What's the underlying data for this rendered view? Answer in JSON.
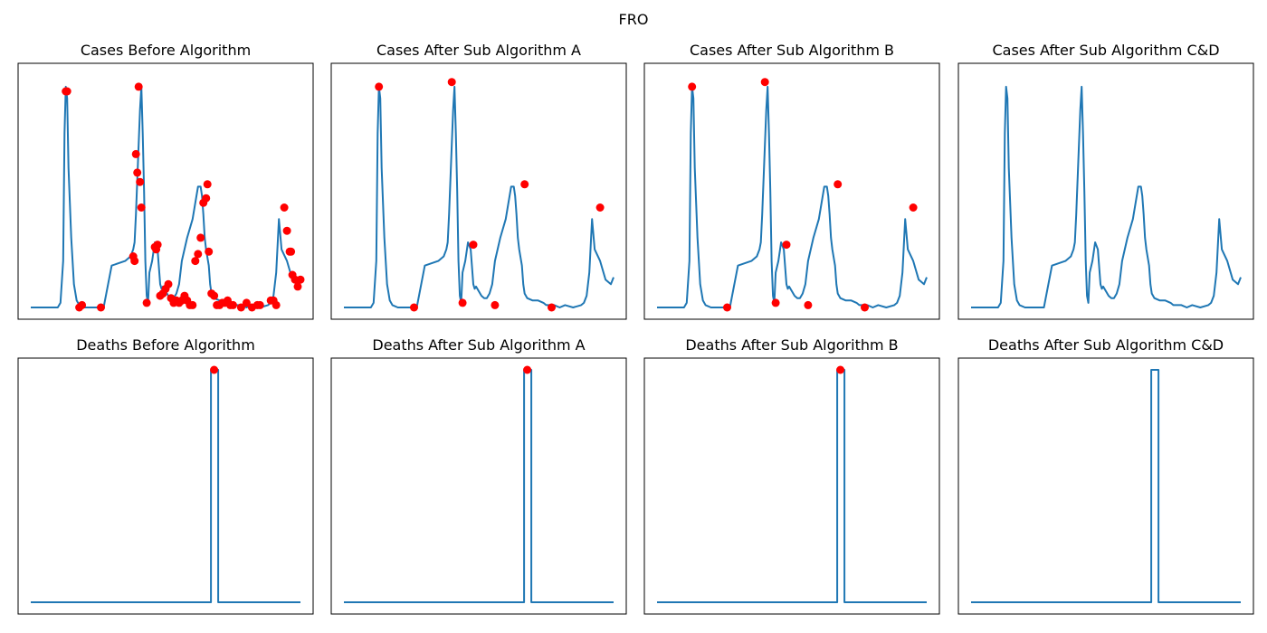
{
  "figure": {
    "suptitle": "FRO",
    "colors": {
      "line": "#1f77b4",
      "marker": "#ff0000"
    }
  },
  "chart_data": [
    {
      "type": "line",
      "row": "cases",
      "title": "Cases Before Algorithm",
      "xlim": [
        0,
        100
      ],
      "ylim": [
        0,
        100
      ],
      "x": [
        0,
        5,
        10,
        11,
        12,
        12.5,
        13,
        13.5,
        14,
        15,
        16,
        17,
        18,
        20,
        25,
        26,
        27,
        30,
        35,
        37,
        38,
        38.5,
        39,
        39.5,
        40,
        40.5,
        41,
        41.5,
        42,
        42.5,
        43,
        43.5,
        44,
        45,
        46,
        47,
        48,
        48.5,
        49,
        50,
        51,
        52,
        53,
        54,
        55,
        56,
        58,
        60,
        61,
        62,
        63,
        63.5,
        64,
        64.5,
        65,
        66,
        66.5,
        67,
        68,
        70,
        72,
        74,
        75,
        78,
        80,
        82,
        85,
        88,
        89,
        90,
        91,
        92,
        93,
        95,
        97,
        99,
        100
      ],
      "y": [
        0,
        0,
        0,
        2,
        20,
        75,
        95,
        90,
        60,
        30,
        10,
        3,
        1,
        0,
        0,
        0,
        0,
        18,
        20,
        22,
        25,
        28,
        40,
        55,
        70,
        85,
        95,
        75,
        50,
        20,
        5,
        2,
        15,
        20,
        28,
        25,
        10,
        8,
        9,
        7,
        5,
        4,
        4,
        6,
        10,
        20,
        30,
        38,
        45,
        52,
        52,
        48,
        40,
        30,
        25,
        18,
        10,
        6,
        4,
        3,
        3,
        2,
        1,
        1,
        0,
        1,
        0,
        1,
        2,
        5,
        15,
        38,
        25,
        20,
        12,
        10,
        13
      ],
      "markers": [
        [
          13,
          93
        ],
        [
          13.5,
          93
        ],
        [
          18,
          0
        ],
        [
          19,
          1
        ],
        [
          26,
          0
        ],
        [
          38,
          22
        ],
        [
          38.5,
          20
        ],
        [
          39,
          66
        ],
        [
          39.5,
          58
        ],
        [
          40,
          95
        ],
        [
          40.5,
          54
        ],
        [
          41,
          43
        ],
        [
          43,
          2
        ],
        [
          46,
          26
        ],
        [
          46.5,
          25
        ],
        [
          47,
          27
        ],
        [
          48,
          5
        ],
        [
          49,
          6
        ],
        [
          50,
          8
        ],
        [
          51,
          10
        ],
        [
          52,
          4
        ],
        [
          53,
          2
        ],
        [
          54,
          3
        ],
        [
          55,
          2
        ],
        [
          56,
          3
        ],
        [
          57,
          5
        ],
        [
          58,
          3
        ],
        [
          59,
          1
        ],
        [
          60,
          1
        ],
        [
          61,
          20
        ],
        [
          62,
          23
        ],
        [
          63,
          30
        ],
        [
          64,
          45
        ],
        [
          65,
          47
        ],
        [
          65.5,
          53
        ],
        [
          66,
          24
        ],
        [
          67,
          6
        ],
        [
          68,
          5
        ],
        [
          69,
          1
        ],
        [
          70,
          1
        ],
        [
          71,
          2
        ],
        [
          72,
          2
        ],
        [
          73,
          3
        ],
        [
          74,
          1
        ],
        [
          75,
          1
        ],
        [
          78,
          0
        ],
        [
          80,
          2
        ],
        [
          82,
          0
        ],
        [
          84,
          1
        ],
        [
          85,
          1
        ],
        [
          89,
          3
        ],
        [
          90,
          3
        ],
        [
          91,
          1
        ],
        [
          94,
          43
        ],
        [
          95,
          33
        ],
        [
          96,
          24
        ],
        [
          96.5,
          24
        ],
        [
          97,
          14
        ],
        [
          98,
          12
        ],
        [
          99,
          9
        ],
        [
          100,
          12
        ]
      ]
    },
    {
      "type": "line",
      "row": "cases",
      "title": "Cases After Sub Algorithm A",
      "xlim": [
        0,
        100
      ],
      "ylim": [
        0,
        100
      ],
      "x": [
        0,
        5,
        10,
        11,
        12,
        12.5,
        13,
        13.5,
        14,
        15,
        16,
        17,
        18,
        20,
        25,
        26,
        27,
        30,
        35,
        37,
        38,
        38.5,
        39,
        39.5,
        40,
        40.5,
        41,
        41.5,
        42,
        42.5,
        43,
        43.5,
        44,
        45,
        46,
        47,
        48,
        48.5,
        49,
        50,
        51,
        52,
        53,
        54,
        55,
        56,
        58,
        60,
        61,
        62,
        63,
        63.5,
        64,
        64.5,
        65,
        66,
        66.5,
        67,
        68,
        70,
        72,
        74,
        75,
        78,
        80,
        82,
        85,
        88,
        89,
        90,
        91,
        92,
        93,
        95,
        97,
        99,
        100
      ],
      "y": [
        0,
        0,
        0,
        2,
        20,
        75,
        95,
        90,
        60,
        30,
        10,
        3,
        1,
        0,
        0,
        0,
        0,
        18,
        20,
        22,
        25,
        28,
        40,
        55,
        70,
        85,
        95,
        75,
        50,
        20,
        5,
        2,
        15,
        20,
        28,
        25,
        10,
        8,
        9,
        7,
        5,
        4,
        4,
        6,
        10,
        20,
        30,
        38,
        45,
        52,
        52,
        48,
        40,
        30,
        25,
        18,
        10,
        6,
        4,
        3,
        3,
        2,
        1,
        1,
        0,
        1,
        0,
        1,
        2,
        5,
        15,
        38,
        25,
        20,
        12,
        10,
        13
      ],
      "markers": [
        [
          13,
          95
        ],
        [
          26,
          0
        ],
        [
          40,
          97
        ],
        [
          44,
          2
        ],
        [
          48,
          27
        ],
        [
          56,
          1
        ],
        [
          67,
          53
        ],
        [
          77,
          0
        ],
        [
          95,
          43
        ]
      ]
    },
    {
      "type": "line",
      "row": "cases",
      "title": "Cases After Sub Algorithm B",
      "xlim": [
        0,
        100
      ],
      "ylim": [
        0,
        100
      ],
      "x": [
        0,
        5,
        10,
        11,
        12,
        12.5,
        13,
        13.5,
        14,
        15,
        16,
        17,
        18,
        20,
        25,
        26,
        27,
        30,
        35,
        37,
        38,
        38.5,
        39,
        39.5,
        40,
        40.5,
        41,
        41.5,
        42,
        42.5,
        43,
        43.5,
        44,
        45,
        46,
        47,
        48,
        48.5,
        49,
        50,
        51,
        52,
        53,
        54,
        55,
        56,
        58,
        60,
        61,
        62,
        63,
        63.5,
        64,
        64.5,
        65,
        66,
        66.5,
        67,
        68,
        70,
        72,
        74,
        75,
        78,
        80,
        82,
        85,
        88,
        89,
        90,
        91,
        92,
        93,
        95,
        97,
        99,
        100
      ],
      "y": [
        0,
        0,
        0,
        2,
        20,
        75,
        95,
        90,
        60,
        30,
        10,
        3,
        1,
        0,
        0,
        0,
        0,
        18,
        20,
        22,
        25,
        28,
        40,
        55,
        70,
        85,
        95,
        75,
        50,
        20,
        5,
        2,
        15,
        20,
        28,
        25,
        10,
        8,
        9,
        7,
        5,
        4,
        4,
        6,
        10,
        20,
        30,
        38,
        45,
        52,
        52,
        48,
        40,
        30,
        25,
        18,
        10,
        6,
        4,
        3,
        3,
        2,
        1,
        1,
        0,
        1,
        0,
        1,
        2,
        5,
        15,
        38,
        25,
        20,
        12,
        10,
        13
      ],
      "markers": [
        [
          13,
          95
        ],
        [
          26,
          0
        ],
        [
          40,
          97
        ],
        [
          44,
          2
        ],
        [
          48,
          27
        ],
        [
          56,
          1
        ],
        [
          67,
          53
        ],
        [
          77,
          0
        ],
        [
          95,
          43
        ]
      ]
    },
    {
      "type": "line",
      "row": "cases",
      "title": "Cases After Sub Algorithm C&D",
      "xlim": [
        0,
        100
      ],
      "ylim": [
        0,
        100
      ],
      "x": [
        0,
        5,
        10,
        11,
        12,
        12.5,
        13,
        13.5,
        14,
        15,
        16,
        17,
        18,
        20,
        25,
        26,
        27,
        30,
        35,
        37,
        38,
        38.5,
        39,
        39.5,
        40,
        40.5,
        41,
        41.5,
        42,
        42.5,
        43,
        43.5,
        44,
        45,
        46,
        47,
        48,
        48.5,
        49,
        50,
        51,
        52,
        53,
        54,
        55,
        56,
        58,
        60,
        61,
        62,
        63,
        63.5,
        64,
        64.5,
        65,
        66,
        66.5,
        67,
        68,
        70,
        72,
        74,
        75,
        78,
        80,
        82,
        85,
        88,
        89,
        90,
        91,
        92,
        93,
        95,
        97,
        99,
        100
      ],
      "y": [
        0,
        0,
        0,
        2,
        20,
        75,
        95,
        90,
        60,
        30,
        10,
        3,
        1,
        0,
        0,
        0,
        0,
        18,
        20,
        22,
        25,
        28,
        40,
        55,
        70,
        85,
        95,
        75,
        50,
        20,
        5,
        2,
        15,
        20,
        28,
        25,
        10,
        8,
        9,
        7,
        5,
        4,
        4,
        6,
        10,
        20,
        30,
        38,
        45,
        52,
        52,
        48,
        40,
        30,
        25,
        18,
        10,
        6,
        4,
        3,
        3,
        2,
        1,
        1,
        0,
        1,
        0,
        1,
        2,
        5,
        15,
        38,
        25,
        20,
        12,
        10,
        13
      ],
      "markers": []
    },
    {
      "type": "line",
      "row": "deaths",
      "title": "Deaths Before Algorithm",
      "xlim": [
        0,
        100
      ],
      "ylim": [
        0,
        100
      ],
      "x": [
        0,
        66.8,
        66.8,
        69.5,
        69.5,
        100
      ],
      "y": [
        0,
        0,
        100,
        100,
        0,
        0
      ],
      "markers": [
        [
          68,
          100
        ]
      ]
    },
    {
      "type": "line",
      "row": "deaths",
      "title": "Deaths After Sub Algorithm A",
      "xlim": [
        0,
        100
      ],
      "ylim": [
        0,
        100
      ],
      "x": [
        0,
        66.8,
        66.8,
        69.5,
        69.5,
        100
      ],
      "y": [
        0,
        0,
        100,
        100,
        0,
        0
      ],
      "markers": [
        [
          68,
          100
        ]
      ]
    },
    {
      "type": "line",
      "row": "deaths",
      "title": "Deaths After Sub Algorithm B",
      "xlim": [
        0,
        100
      ],
      "ylim": [
        0,
        100
      ],
      "x": [
        0,
        66.8,
        66.8,
        69.5,
        69.5,
        100
      ],
      "y": [
        0,
        0,
        100,
        100,
        0,
        0
      ],
      "markers": [
        [
          68,
          100
        ]
      ]
    },
    {
      "type": "line",
      "row": "deaths",
      "title": "Deaths After Sub Algorithm C&D",
      "xlim": [
        0,
        100
      ],
      "ylim": [
        0,
        100
      ],
      "x": [
        0,
        66.8,
        66.8,
        69.5,
        69.5,
        100
      ],
      "y": [
        0,
        0,
        100,
        100,
        0,
        0
      ],
      "markers": []
    }
  ]
}
